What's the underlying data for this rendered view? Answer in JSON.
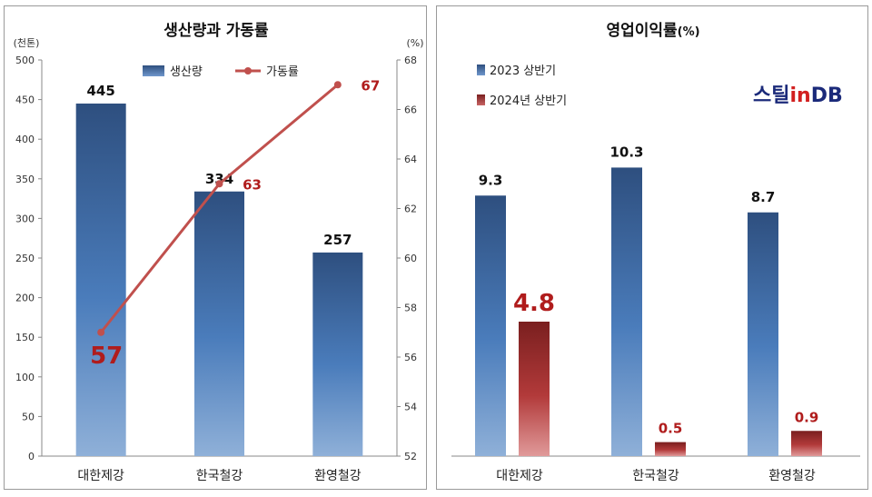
{
  "chart_data": [
    {
      "type": "bar",
      "title": "생산량과 가동률",
      "left_unit": "(천톤)",
      "right_unit": "(%)",
      "categories": [
        "대한제강",
        "한국철강",
        "환영철강"
      ],
      "left_ylim": [
        0,
        500
      ],
      "left_ticks": [
        "0",
        "50",
        "100",
        "150",
        "200",
        "250",
        "300",
        "350",
        "400",
        "450",
        "500"
      ],
      "right_ylim": [
        52,
        68
      ],
      "right_ticks": [
        "52",
        "54",
        "56",
        "58",
        "60",
        "62",
        "64",
        "66",
        "68"
      ],
      "series": [
        {
          "name": "생산량",
          "kind": "bar",
          "axis": "left",
          "values": [
            445,
            334,
            257
          ],
          "labels": [
            "445",
            "334",
            "257"
          ],
          "color": "#3a6aa8"
        },
        {
          "name": "가동률",
          "kind": "line",
          "axis": "right",
          "values": [
            57,
            63,
            67
          ],
          "labels": [
            "57",
            "63",
            "67"
          ],
          "color": "#c0504d"
        }
      ],
      "legend": "top-center",
      "grid": false
    },
    {
      "type": "bar",
      "title": "영업이익률",
      "title_suffix": "(%)",
      "categories": [
        "대한제강",
        "한국철강",
        "환영철강"
      ],
      "series": [
        {
          "name": "2023 상반기",
          "values": [
            9.3,
            10.3,
            8.7
          ],
          "labels": [
            "9.3",
            "10.3",
            "8.7"
          ],
          "color": "#3a6aa8"
        },
        {
          "name": "2024년 상반기",
          "values": [
            4.8,
            0.5,
            0.9
          ],
          "labels": [
            "4.8",
            "0.5",
            "0.9"
          ],
          "color": "#a33232"
        }
      ],
      "legend": "top-left",
      "grid": false,
      "logo": {
        "part1": "스틸",
        "part2": "in",
        "part3": "DB"
      }
    }
  ]
}
